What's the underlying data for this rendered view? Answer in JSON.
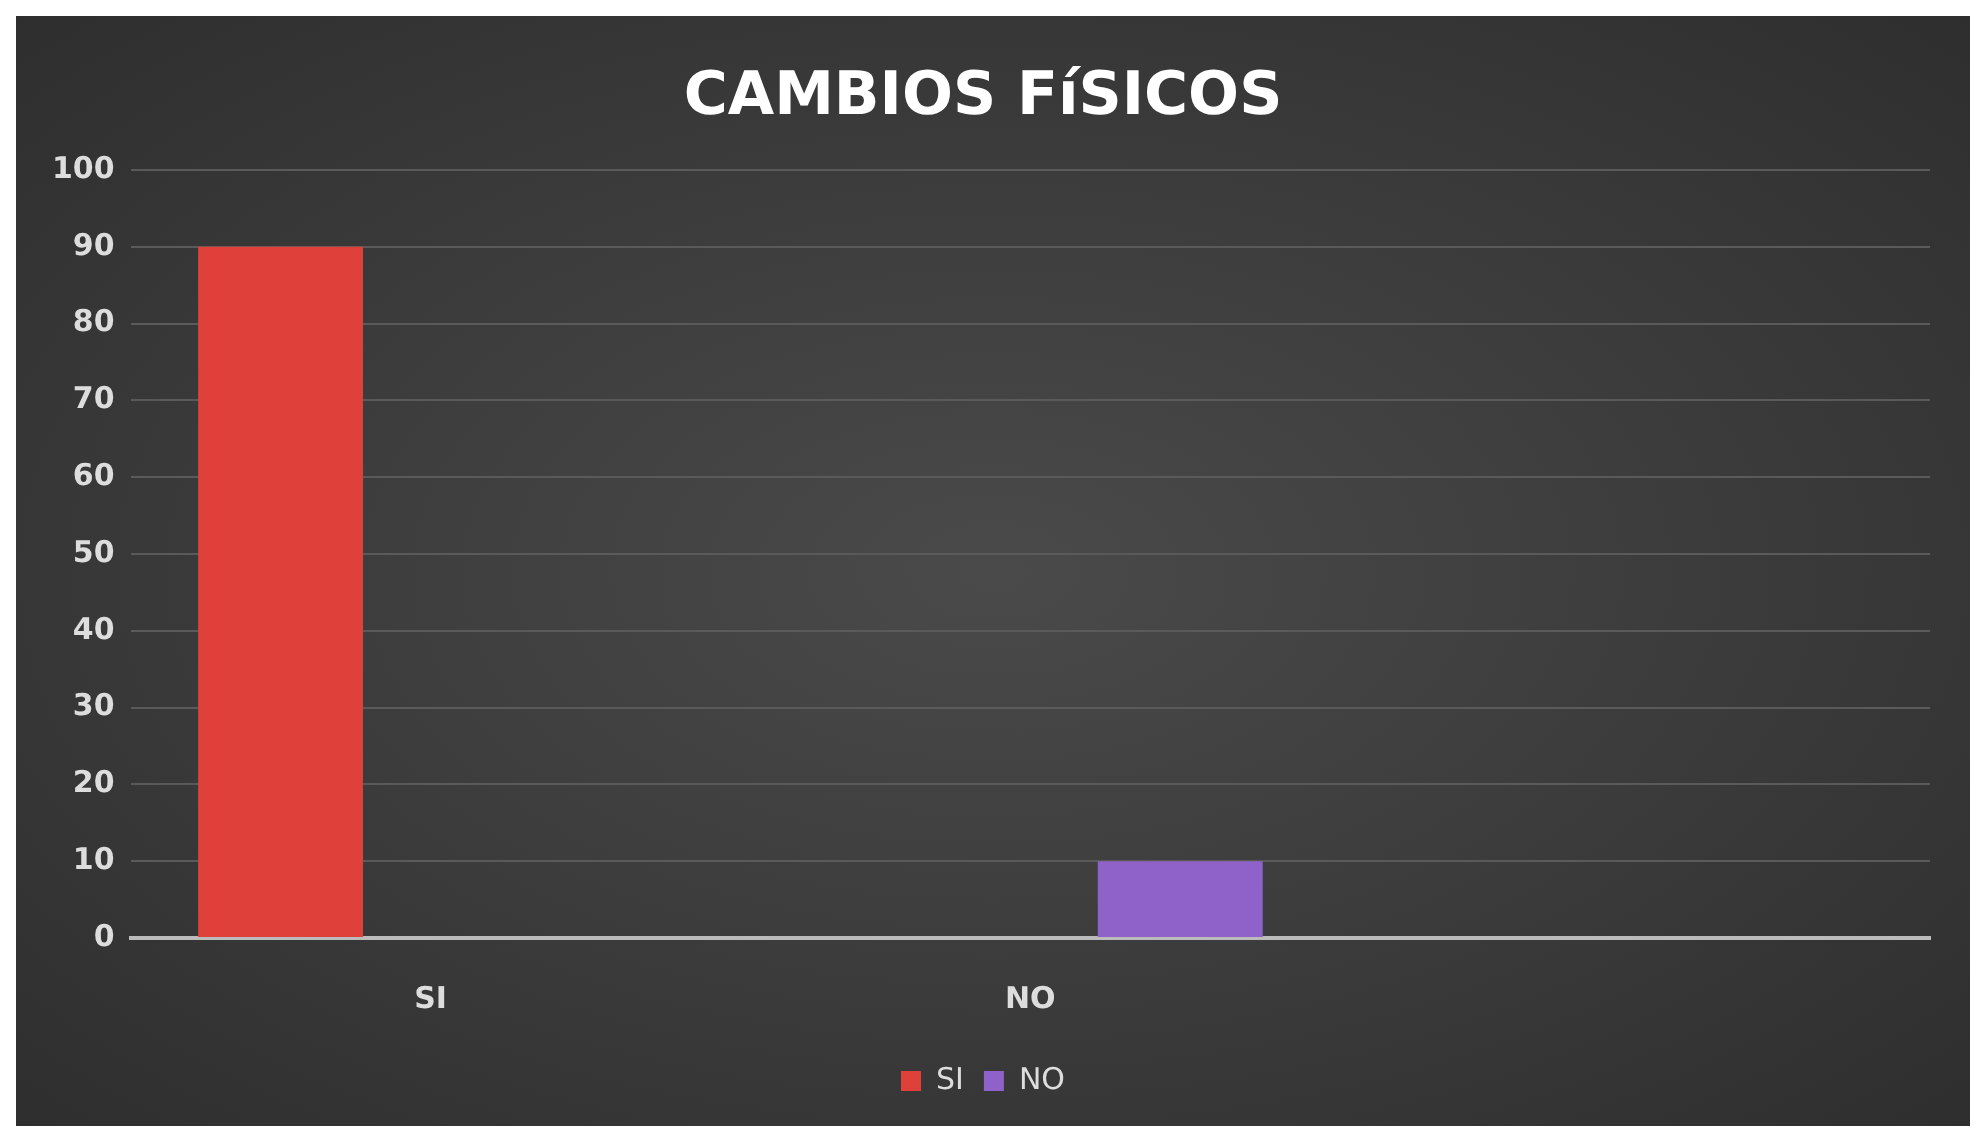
{
  "chart_data": {
    "type": "bar",
    "title": "CAMBIOS FíSICOS",
    "categories": [
      "SI",
      "NO",
      null
    ],
    "series": [
      {
        "name": "SI",
        "color": "#e0403a",
        "values": [
          90,
          null,
          null
        ]
      },
      {
        "name": "NO",
        "color": "#8e62c8",
        "values": [
          null,
          10,
          null
        ]
      }
    ],
    "ylim": [
      0,
      100
    ],
    "yticks": [
      0,
      10,
      20,
      30,
      40,
      50,
      60,
      70,
      80,
      90,
      100
    ],
    "grid": "y",
    "legend": "bottom"
  }
}
